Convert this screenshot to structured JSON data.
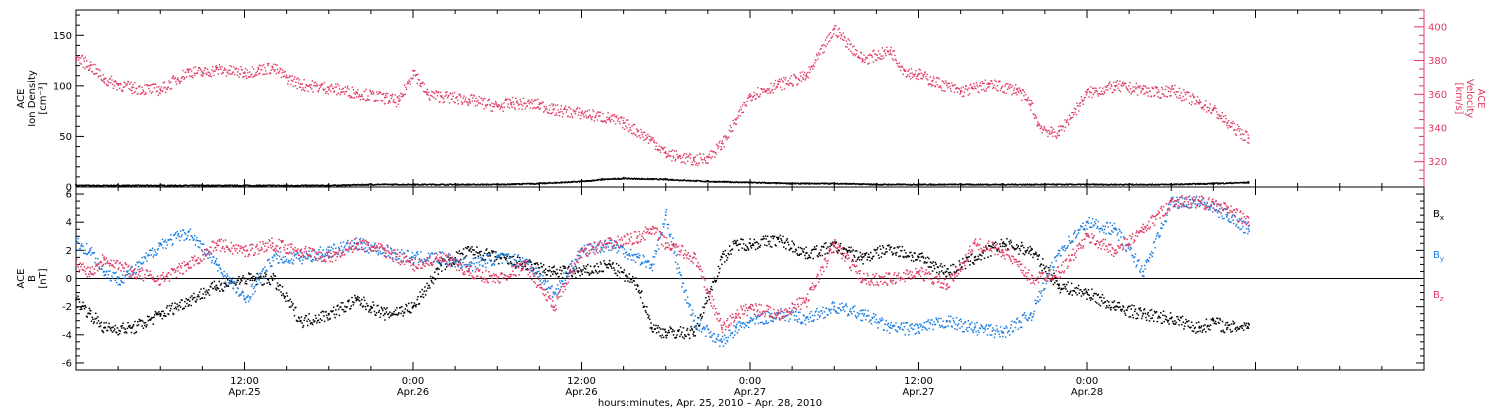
{
  "chart_data": [
    {
      "type": "scatter",
      "panel": "top",
      "ylabel_left": [
        "ACE",
        "Ion Density",
        "[cm⁻³]"
      ],
      "ylabel_right": [
        "ACE",
        "Velocity",
        "[km/s]"
      ],
      "ylim_left": [
        0,
        175
      ],
      "ylim_right": [
        305,
        410
      ],
      "yticks_left": [
        "0",
        "50",
        "100",
        "150"
      ],
      "yticks_right": [
        "320",
        "340",
        "360",
        "380",
        "400"
      ],
      "colors": {
        "density": "#000000",
        "velocity": "#e03a63"
      },
      "series": [
        {
          "key": "density",
          "axis": "left",
          "x": [
            0,
            3,
            6,
            9,
            12,
            15,
            18,
            21,
            24,
            27,
            30,
            33,
            36,
            37.5,
            39,
            42,
            45,
            48,
            51,
            54,
            57,
            60,
            63,
            66,
            69,
            72,
            75,
            78,
            81,
            83.5
          ],
          "y": [
            2,
            2,
            2,
            2,
            2,
            2,
            2,
            3,
            3,
            3,
            3,
            4,
            6,
            8,
            9,
            8,
            6,
            5,
            4,
            4,
            3,
            3,
            3,
            3,
            3,
            3,
            3,
            3,
            4,
            5
          ]
        },
        {
          "key": "velocity",
          "axis": "right",
          "x": [
            0,
            1,
            2,
            3,
            4,
            6,
            8,
            9,
            10,
            12,
            13,
            14,
            15,
            16,
            18,
            20,
            22,
            23,
            24,
            25,
            26,
            28,
            30,
            31,
            33,
            34,
            36,
            38,
            39,
            40,
            41,
            42,
            43,
            44,
            45,
            46,
            47,
            48,
            50,
            52,
            54,
            56,
            58,
            59,
            60,
            61,
            63,
            65,
            67,
            68,
            68.5,
            69.5,
            70,
            72,
            74,
            76,
            77,
            78,
            80,
            81,
            82,
            83.5
          ],
          "y": [
            382,
            377,
            369,
            366,
            364,
            363,
            374,
            373,
            375,
            373,
            375,
            376,
            370,
            366,
            364,
            361,
            358,
            356,
            374,
            360,
            359,
            357,
            353,
            355,
            354,
            351,
            349,
            346,
            343,
            338,
            333,
            325,
            323,
            321,
            323,
            331,
            345,
            360,
            366,
            371,
            399,
            381,
            386,
            374,
            372,
            368,
            362,
            366,
            363,
            354,
            342,
            337,
            338,
            361,
            365,
            363,
            361,
            363,
            355,
            351,
            343,
            334
          ]
        }
      ]
    },
    {
      "type": "scatter",
      "panel": "bottom",
      "ylabel": [
        "ACE",
        "B",
        "[nT]"
      ],
      "ylim": [
        -6.5,
        6.5
      ],
      "yticks": [
        "-6",
        "-4",
        "-2",
        "0",
        "2",
        "4",
        "6"
      ],
      "colors": {
        "Bx": "#000000",
        "By": "#1f7fe0",
        "Bz": "#e03a63"
      },
      "legend": [
        {
          "key": "Bx",
          "base": "B",
          "sub": "x"
        },
        {
          "key": "By",
          "base": "B",
          "sub": "y"
        },
        {
          "key": "Bz",
          "base": "B",
          "sub": "z"
        }
      ],
      "series": [
        {
          "key": "Bx",
          "x": [
            0,
            1,
            2,
            4,
            6,
            8,
            10,
            12,
            14,
            16,
            18,
            20,
            21,
            22,
            24,
            26,
            28,
            30,
            32,
            34,
            36,
            38,
            40,
            41,
            42,
            44,
            46,
            47,
            48,
            50,
            52,
            54,
            56,
            58,
            60,
            62,
            64,
            66,
            68,
            70,
            72,
            74,
            76,
            78,
            80,
            81,
            82,
            83.5
          ],
          "y": [
            -1.5,
            -2.5,
            -3.5,
            -3.5,
            -2.5,
            -1.5,
            -0.5,
            0.0,
            0.0,
            -3.0,
            -2.5,
            -1.5,
            -2.0,
            -2.5,
            -2.0,
            1.0,
            2.0,
            1.5,
            1.0,
            0.5,
            0.5,
            1.0,
            -0.5,
            -3.5,
            -3.8,
            -3.8,
            1.5,
            2.5,
            2.5,
            2.8,
            1.8,
            2.3,
            1.5,
            2.2,
            1.5,
            0.5,
            1.5,
            2.5,
            2.0,
            -0.5,
            -1.0,
            -2.0,
            -2.5,
            -2.8,
            -3.5,
            -3.0,
            -3.5,
            -3.2
          ]
        },
        {
          "key": "By",
          "x": [
            0,
            1,
            2,
            3,
            4,
            6,
            8,
            10,
            12,
            14,
            16,
            18,
            20,
            22,
            24,
            26,
            28,
            30,
            32,
            34,
            36,
            38,
            40,
            41,
            42,
            43,
            44,
            46,
            47,
            48,
            50,
            52,
            54,
            56,
            58,
            60,
            62,
            64,
            66,
            68,
            70,
            72,
            74,
            76,
            78,
            80,
            81,
            82,
            83.5
          ],
          "y": [
            2.5,
            2.0,
            0.5,
            0.0,
            0.5,
            2.5,
            3.3,
            1.0,
            -1.5,
            1.5,
            1.5,
            2.0,
            2.5,
            2.0,
            1.5,
            1.5,
            1.0,
            1.5,
            1.3,
            -1.0,
            2.0,
            2.5,
            1.5,
            1.0,
            4.5,
            0.0,
            -3.0,
            -4.5,
            -3.5,
            -3.0,
            -2.5,
            -2.8,
            -2.0,
            -2.5,
            -3.5,
            -3.5,
            -3.0,
            -3.5,
            -3.8,
            -2.5,
            2.0,
            4.0,
            3.5,
            0.5,
            5.5,
            5.5,
            5.0,
            4.5,
            3.5
          ]
        },
        {
          "key": "Bz",
          "x": [
            0,
            1,
            2,
            4,
            6,
            8,
            10,
            12,
            14,
            16,
            18,
            20,
            22,
            24,
            26,
            28,
            30,
            32,
            34,
            36,
            38,
            40,
            41,
            42,
            44,
            46,
            47,
            48,
            50,
            52,
            54,
            56,
            58,
            60,
            62,
            64,
            66,
            68,
            70,
            72,
            74,
            76,
            78,
            80,
            82,
            83.5
          ],
          "y": [
            1.0,
            0.5,
            1.5,
            0.5,
            0.0,
            1.0,
            2.5,
            2.0,
            2.5,
            2.0,
            1.5,
            2.5,
            2.0,
            1.0,
            1.5,
            0.5,
            0.0,
            1.0,
            -2.0,
            2.0,
            2.5,
            3.0,
            3.5,
            2.5,
            1.5,
            -3.5,
            -2.5,
            -2.0,
            -2.5,
            -1.5,
            2.5,
            0.0,
            0.0,
            0.5,
            -0.5,
            2.5,
            2.0,
            0.0,
            0.5,
            3.0,
            2.0,
            3.5,
            5.5,
            5.5,
            5.0,
            4.0
          ]
        }
      ]
    }
  ],
  "x_axis": {
    "range_hours": [
      0,
      96
    ],
    "ticks": [
      {
        "hour": 12,
        "line1": "12:00",
        "line2": "Apr.25"
      },
      {
        "hour": 24,
        "line1": "0:00",
        "line2": "Apr.26"
      },
      {
        "hour": 36,
        "line1": "12:00",
        "line2": "Apr.26"
      },
      {
        "hour": 48,
        "line1": "0:00",
        "line2": "Apr.27"
      },
      {
        "hour": 60,
        "line1": "12:00",
        "line2": "Apr.27"
      },
      {
        "hour": 72,
        "line1": "0:00",
        "line2": "Apr.28"
      }
    ],
    "title": "hours:minutes, Apr. 25, 2010 – Apr. 28, 2010"
  }
}
